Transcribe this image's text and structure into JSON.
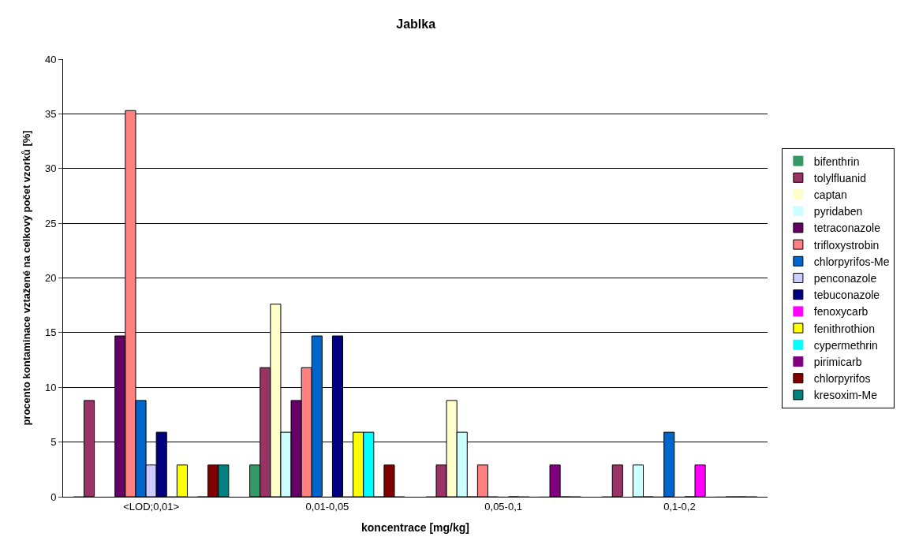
{
  "chart_data": {
    "type": "bar",
    "title": "Jablka",
    "xlabel": "koncentrace [mg/kg]",
    "ylabel": "procento kontaminace vztažené na celkový počet vzorků [%]",
    "categories": [
      "<LOD;0,01>",
      "0,01-0,05",
      "0,05-0,1",
      "0,1-0,2"
    ],
    "series": [
      {
        "name": "bifenthrin",
        "color": "#339966",
        "values": [
          0,
          2.9,
          0,
          0
        ]
      },
      {
        "name": "tolylfluanid",
        "color": "#993366",
        "values": [
          8.8,
          11.8,
          2.9,
          2.9
        ]
      },
      {
        "name": "captan",
        "color": "#ffffcc",
        "values": [
          0,
          17.6,
          8.8,
          0
        ]
      },
      {
        "name": "pyridaben",
        "color": "#ccffff",
        "values": [
          0,
          5.9,
          5.9,
          2.9
        ]
      },
      {
        "name": "tetraconazole",
        "color": "#660066",
        "values": [
          14.7,
          8.8,
          0,
          0
        ]
      },
      {
        "name": "trifloxystrobin",
        "color": "#ff8080",
        "values": [
          35.3,
          11.8,
          2.9,
          0
        ]
      },
      {
        "name": "chlorpyrifos-Me",
        "color": "#0066cc",
        "values": [
          8.8,
          14.7,
          0,
          5.9
        ]
      },
      {
        "name": "penconazole",
        "color": "#ccccff",
        "values": [
          2.9,
          0,
          0,
          0
        ]
      },
      {
        "name": "tebuconazole",
        "color": "#000080",
        "values": [
          5.9,
          14.7,
          0,
          0
        ]
      },
      {
        "name": "fenoxycarb",
        "color": "#ff00ff",
        "values": [
          0,
          0,
          0,
          2.9
        ]
      },
      {
        "name": "fenithrothion",
        "color": "#ffff00",
        "values": [
          2.9,
          5.9,
          0,
          0
        ]
      },
      {
        "name": "cypermethrin",
        "color": "#00ffff",
        "values": [
          0,
          5.9,
          0,
          0
        ]
      },
      {
        "name": "pirimicarb",
        "color": "#800080",
        "values": [
          0,
          0,
          2.9,
          0
        ]
      },
      {
        "name": "chlorpyrifos",
        "color": "#800000",
        "values": [
          2.9,
          2.9,
          0,
          0
        ]
      },
      {
        "name": "kresoxim-Me",
        "color": "#008080",
        "values": [
          2.9,
          0,
          0,
          0
        ]
      }
    ],
    "ylim": [
      0,
      40
    ],
    "yticks": [
      0,
      5,
      10,
      15,
      20,
      25,
      30,
      35,
      40
    ],
    "grid": "y",
    "legend": "right"
  }
}
